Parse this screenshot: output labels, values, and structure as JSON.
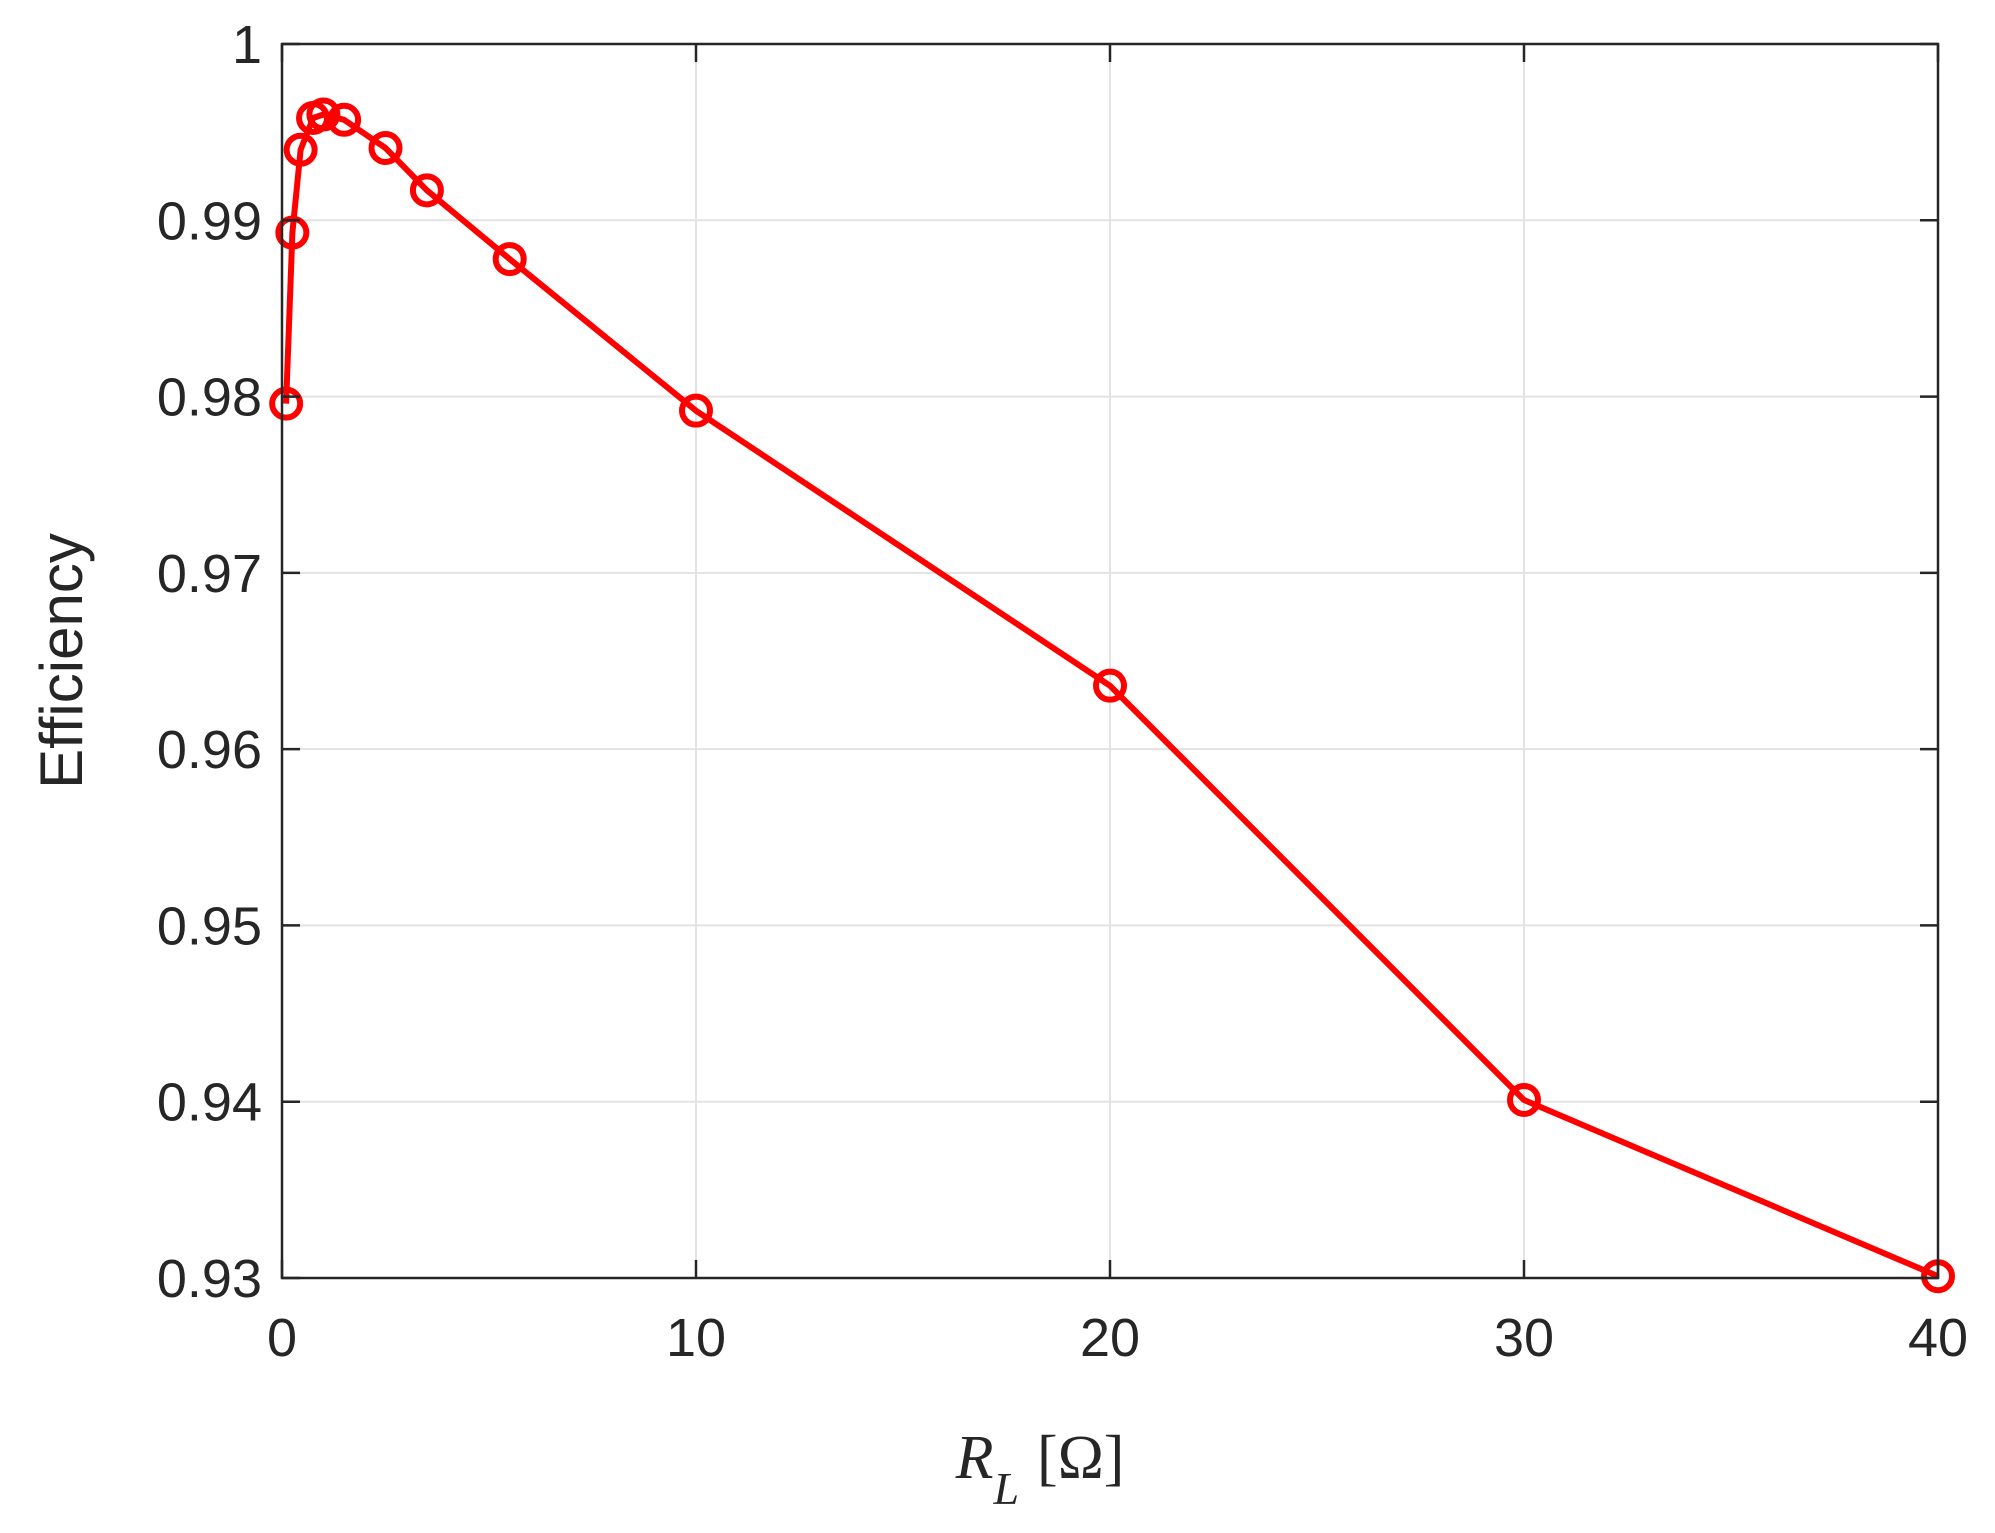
{
  "chart_data": {
    "type": "line",
    "title": "",
    "xlabel": "R",
    "xlabel_subscript": "L",
    "xlabel_unit": "[Ω]",
    "ylabel": "Efficiency",
    "xlim": [
      0,
      40
    ],
    "ylim": [
      0.93,
      1.0
    ],
    "xticks": [
      0,
      10,
      20,
      30,
      40
    ],
    "xtick_labels": [
      "0",
      "10",
      "20",
      "30",
      "40"
    ],
    "yticks": [
      0.93,
      0.94,
      0.95,
      0.96,
      0.97,
      0.98,
      0.99,
      1.0
    ],
    "ytick_labels": [
      "0.93",
      "0.94",
      "0.95",
      "0.96",
      "0.97",
      "0.98",
      "0.99",
      "1"
    ],
    "grid": true,
    "legend": "none",
    "series": [
      {
        "color": "#ff0000",
        "marker": "circle",
        "x": [
          0.1,
          0.25,
          0.45,
          0.75,
          1.0,
          1.5,
          2.5,
          3.5,
          5.5,
          10,
          20,
          30,
          40
        ],
        "y": [
          0.9796,
          0.9893,
          0.994,
          0.9958,
          0.996,
          0.9957,
          0.9941,
          0.9917,
          0.9878,
          0.9792,
          0.9636,
          0.9401,
          0.9301
        ]
      }
    ]
  }
}
